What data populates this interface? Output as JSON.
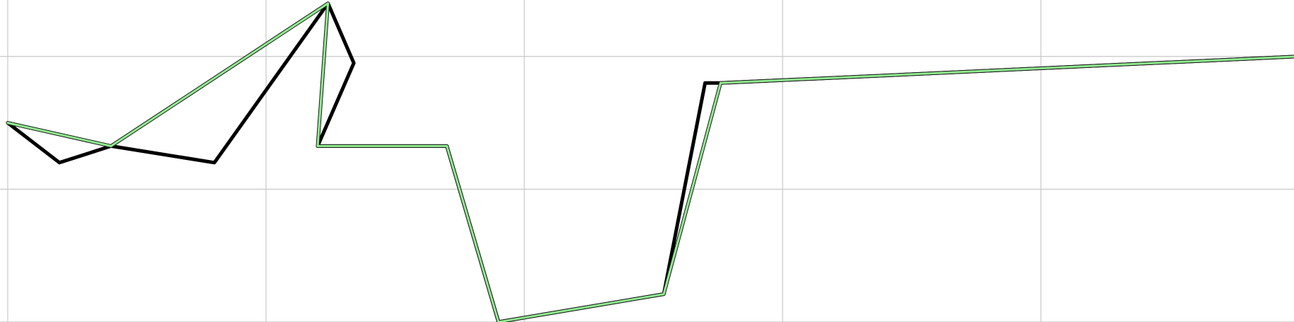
{
  "chart_data": {
    "type": "line",
    "title": "",
    "xlabel": "",
    "ylabel": "",
    "grid": true,
    "legend": "none",
    "xlim": [
      -0.15,
      24.9
    ],
    "ylim": [
      0,
      4.85
    ],
    "x_gridlines": [
      0,
      5,
      10,
      15,
      20
    ],
    "y_gridlines": [
      0,
      2,
      4
    ],
    "series": [
      {
        "color": "#000000",
        "outline": false,
        "points": [
          [
            0.0,
            3.0
          ],
          [
            1.0,
            2.4
          ],
          [
            2.0,
            2.65
          ],
          [
            4.0,
            2.4
          ],
          [
            6.2,
            4.8
          ],
          [
            6.7,
            3.9
          ],
          [
            6.0,
            2.65
          ],
          [
            8.5,
            2.65
          ],
          [
            9.5,
            0.0
          ],
          [
            12.7,
            0.42
          ],
          [
            13.5,
            3.6
          ],
          [
            13.8,
            3.6
          ],
          [
            25.0,
            4.0
          ]
        ]
      },
      {
        "color": "#90EE90",
        "outline": true,
        "points": [
          [
            0.0,
            3.0
          ],
          [
            2.0,
            2.65
          ],
          [
            6.2,
            4.8
          ],
          [
            6.0,
            2.65
          ],
          [
            8.5,
            2.65
          ],
          [
            9.5,
            0.0
          ],
          [
            12.7,
            0.42
          ],
          [
            13.8,
            3.6
          ],
          [
            25.0,
            4.0
          ]
        ]
      }
    ]
  }
}
